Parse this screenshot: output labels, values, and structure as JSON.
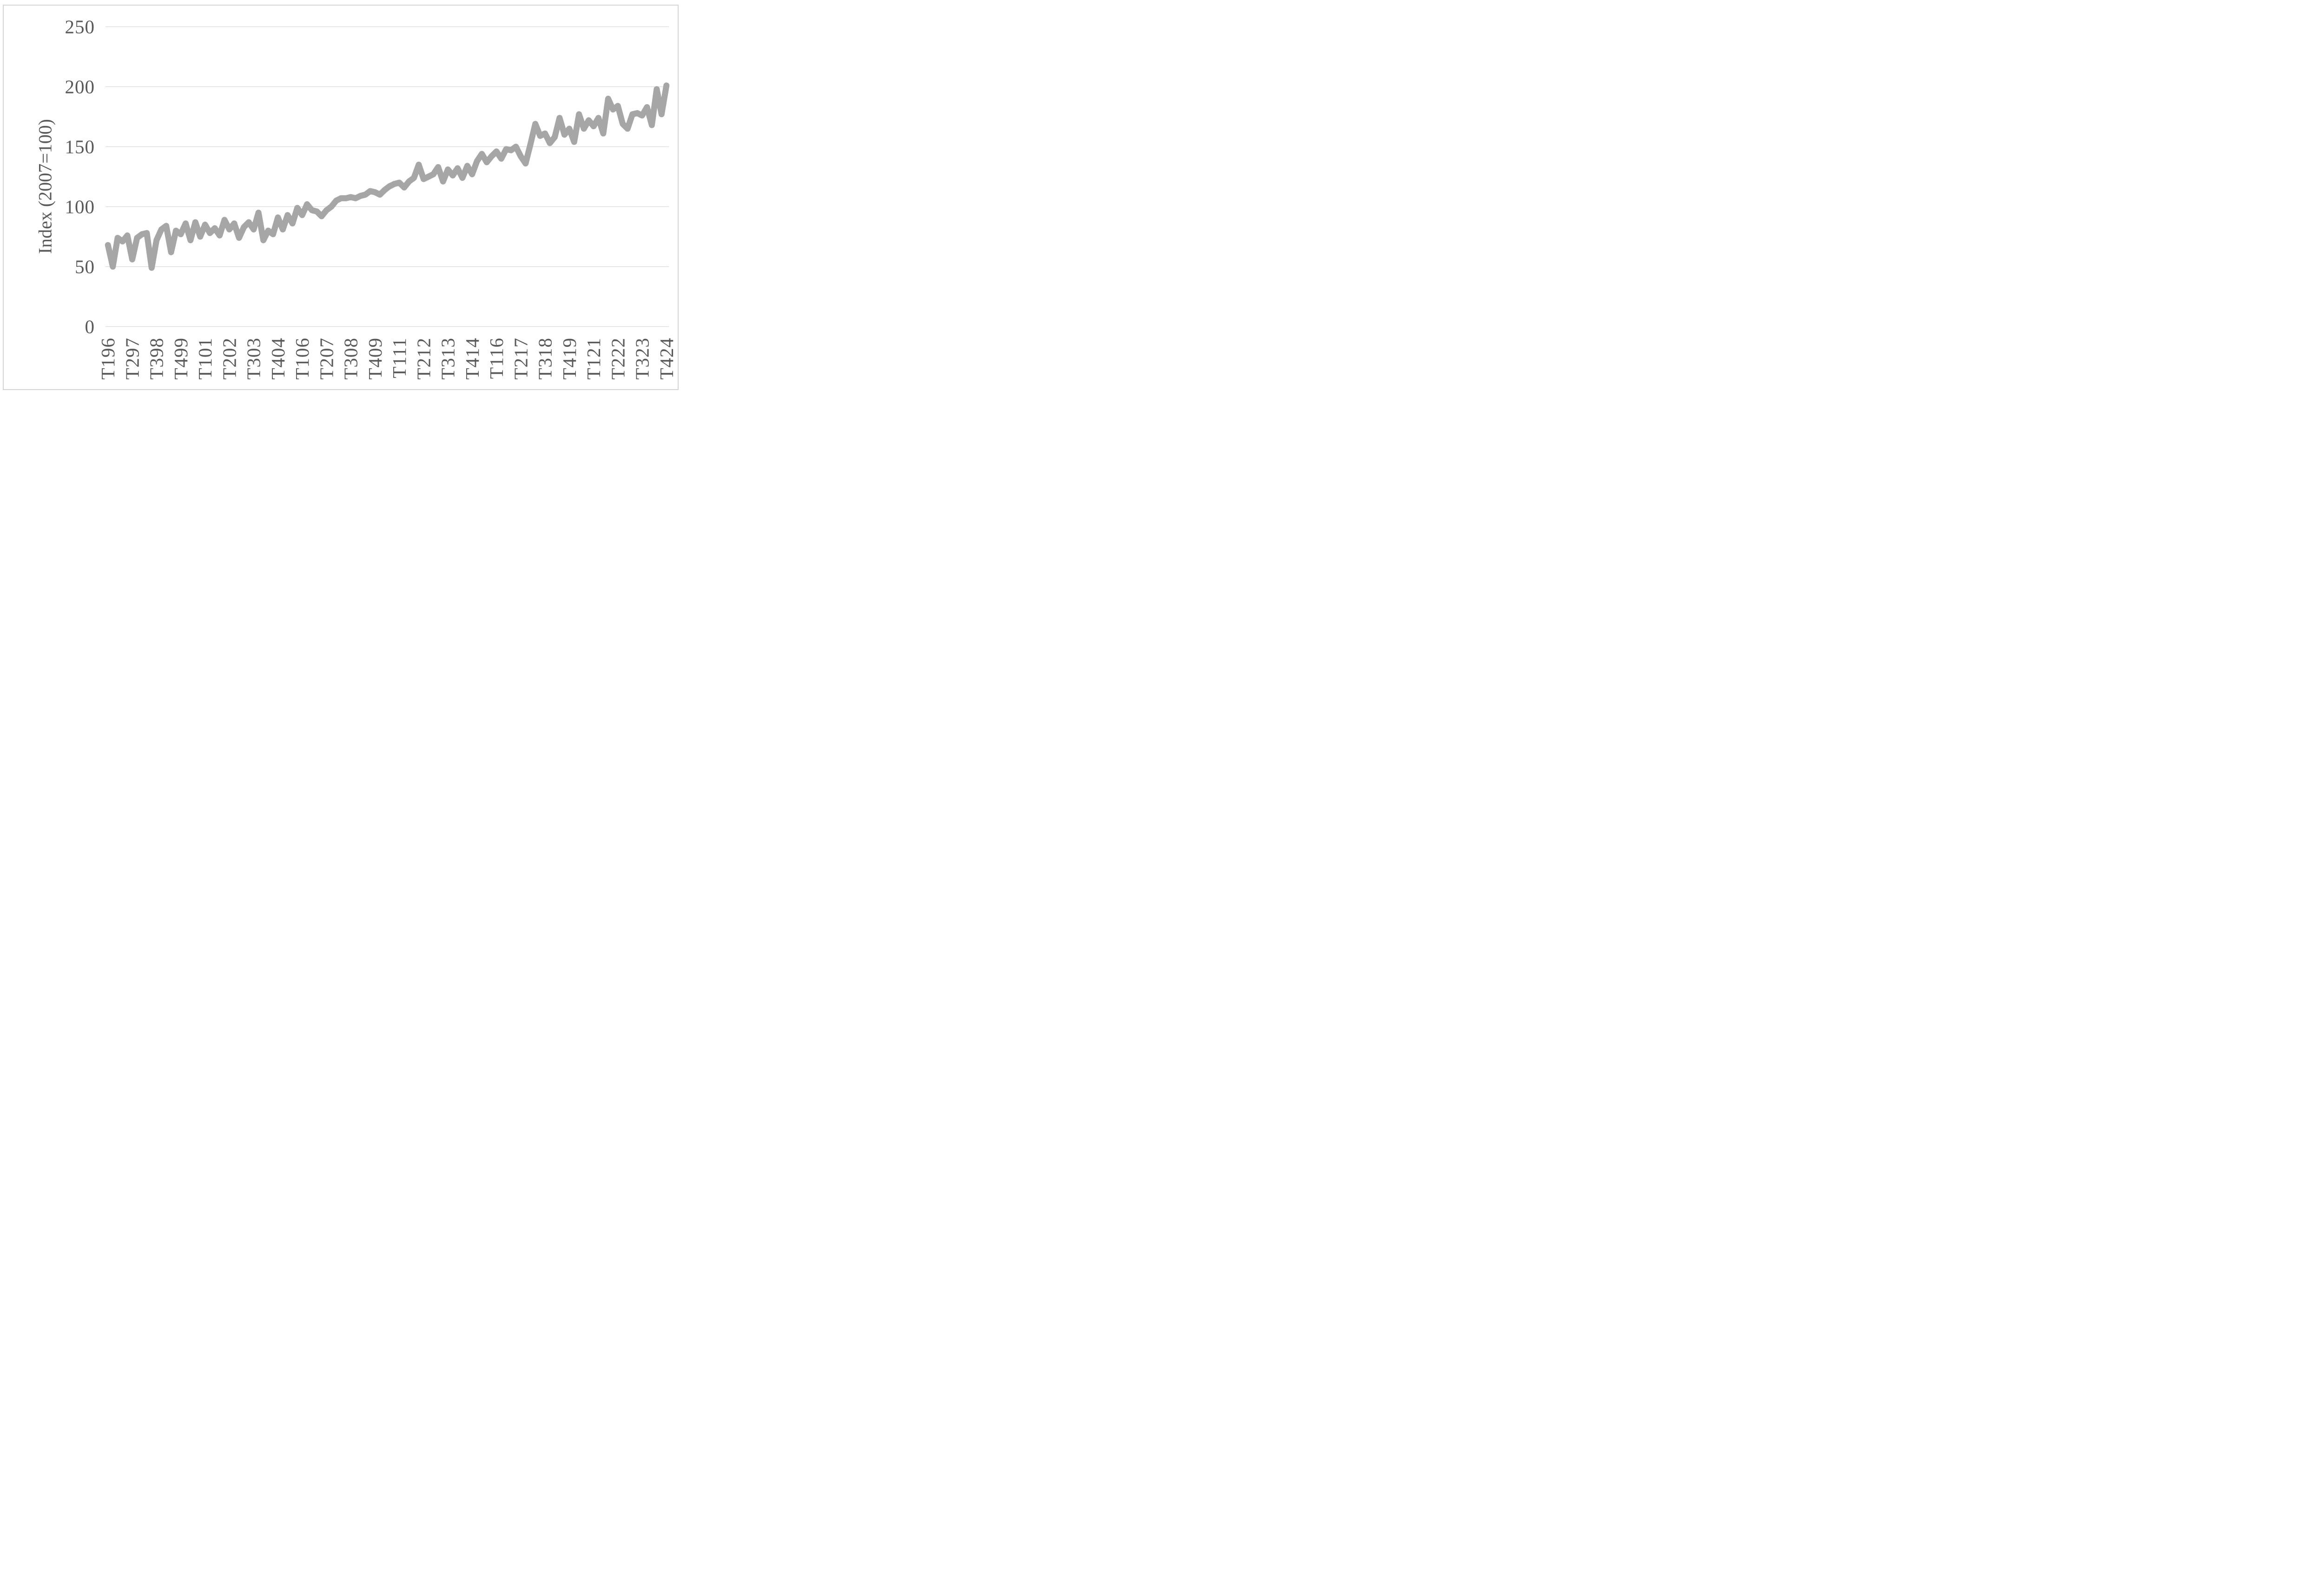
{
  "figure": {
    "background": "#ffffff",
    "border_color": "#d5d5d5"
  },
  "chart_data": {
    "type": "line",
    "title": "",
    "ylabel": "Index (2007=100)",
    "xlabel": "",
    "ylim": [
      0,
      250
    ],
    "y_ticks": [
      "0",
      "50",
      "100",
      "150",
      "200",
      "250"
    ],
    "y_tick_values": [
      0,
      50,
      100,
      150,
      200,
      250
    ],
    "grid": "horizontal",
    "legend": "none",
    "x_tick_labels": [
      "T196",
      "T297",
      "T398",
      "T499",
      "T101",
      "T202",
      "T303",
      "T404",
      "T106",
      "T207",
      "T308",
      "T409",
      "T111",
      "T212",
      "T313",
      "T414",
      "T116",
      "T217",
      "T318",
      "T419",
      "T121",
      "T222",
      "T323",
      "T424"
    ],
    "x_tick_every": 5,
    "n_points": 116,
    "line_color": "#a6a6a6",
    "grid_color": "#d9d9d9",
    "axis_label_color": "#595959",
    "values": [
      68,
      50,
      74,
      71,
      76,
      56,
      74,
      77,
      78,
      49,
      72,
      81,
      84,
      62,
      80,
      77,
      86,
      72,
      87,
      75,
      85,
      78,
      82,
      76,
      89,
      81,
      86,
      74,
      83,
      87,
      81,
      95,
      72,
      80,
      77,
      91,
      81,
      93,
      86,
      99,
      93,
      102,
      97,
      96,
      92,
      97,
      100,
      105,
      107,
      107,
      108,
      107,
      109,
      110,
      113,
      112,
      110,
      114,
      117,
      119,
      120,
      116,
      121,
      124,
      135,
      123,
      125,
      127,
      133,
      121,
      131,
      126,
      132,
      124,
      134,
      127,
      138,
      144,
      137,
      142,
      146,
      140,
      148,
      147,
      150,
      142,
      136,
      152,
      169,
      159,
      161,
      153,
      158,
      174,
      160,
      165,
      154,
      177,
      165,
      172,
      167,
      174,
      161,
      190,
      181,
      184,
      169,
      165,
      177,
      178,
      176,
      183,
      168,
      198,
      177,
      201
    ]
  }
}
